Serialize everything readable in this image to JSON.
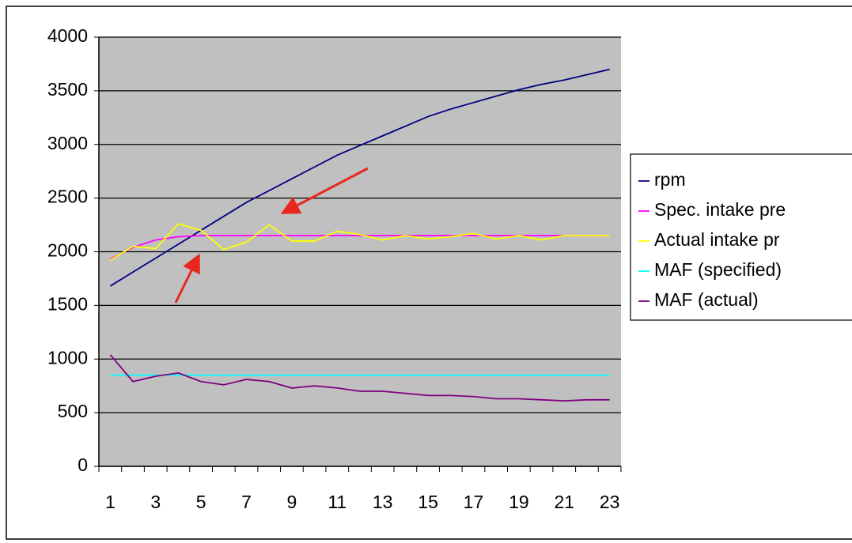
{
  "chart_data": {
    "type": "line",
    "categories": [
      1,
      null,
      3,
      null,
      5,
      null,
      7,
      null,
      9,
      null,
      11,
      null,
      13,
      null,
      15,
      null,
      17,
      null,
      19,
      null,
      21,
      null,
      23
    ],
    "series": [
      {
        "name": "rpm",
        "color": "#000080",
        "values": [
          1680,
          1810,
          1940,
          2070,
          2200,
          2330,
          2460,
          2570,
          2680,
          2790,
          2900,
          2990,
          3080,
          3170,
          3260,
          3330,
          3390,
          3450,
          3510,
          3560,
          3600,
          3650,
          3700
        ]
      },
      {
        "name": "Spec. intake pre",
        "color": "#ff00ff",
        "values": [
          1930,
          2040,
          2110,
          2140,
          2150,
          2150,
          2150,
          2150,
          2150,
          2150,
          2150,
          2150,
          2150,
          2150,
          2150,
          2150,
          2150,
          2150,
          2150,
          2150,
          2150,
          2150,
          2150
        ]
      },
      {
        "name": "Actual intake pr",
        "color": "#ffff00",
        "values": [
          1920,
          2050,
          2030,
          2260,
          2200,
          2020,
          2090,
          2250,
          2100,
          2100,
          2190,
          2160,
          2110,
          2150,
          2120,
          2140,
          2170,
          2120,
          2150,
          2110,
          2150,
          2150,
          2150
        ]
      },
      {
        "name": "MAF (specified)",
        "color": "#00ffff",
        "values": [
          850,
          850,
          850,
          850,
          850,
          850,
          850,
          850,
          850,
          850,
          850,
          850,
          850,
          850,
          850,
          850,
          850,
          850,
          850,
          850,
          850,
          850,
          850
        ]
      },
      {
        "name": "MAF (actual)",
        "color": "#800080",
        "values": [
          1040,
          790,
          840,
          870,
          790,
          760,
          810,
          790,
          730,
          750,
          730,
          700,
          700,
          680,
          660,
          660,
          650,
          630,
          630,
          620,
          610,
          620,
          620
        ]
      }
    ],
    "ylim": [
      0,
      4000
    ],
    "yticks": [
      0,
      500,
      1000,
      1500,
      2000,
      2500,
      3000,
      3500,
      4000
    ],
    "grid": true,
    "legend": "right",
    "plot_background": "#c0c0c0"
  }
}
